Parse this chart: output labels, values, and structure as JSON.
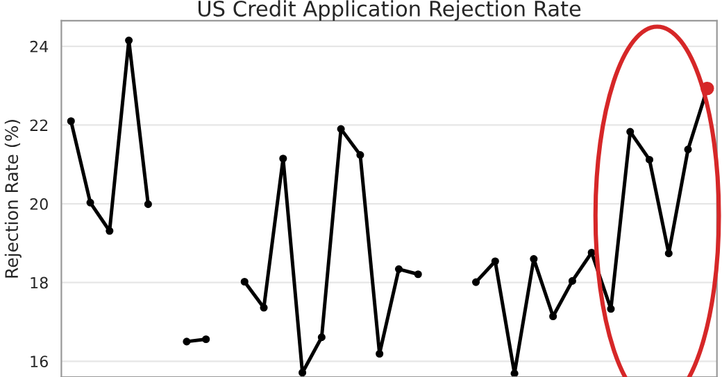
{
  "chart_data": {
    "type": "line",
    "title": "US Credit Application Rejection Rate",
    "ylabel": "Rejection Rate (%)",
    "categories": [
      null,
      null,
      null,
      null,
      null,
      null,
      null,
      null,
      null,
      null,
      null,
      null,
      null,
      null,
      null,
      null,
      null,
      null,
      null,
      null,
      null,
      null,
      null,
      null,
      null,
      null,
      null,
      null,
      null,
      null,
      null,
      null,
      null,
      null
    ],
    "series": [
      {
        "color": "#000000",
        "colors": [
          "#000000",
          "#000000",
          "#000000",
          "#000000",
          "#000000",
          "#000000",
          "#000000",
          "#000000",
          "#000000",
          "#000000",
          "#000000",
          "#000000",
          "#000000",
          "#000000",
          "#000000",
          "#000000",
          "#000000",
          "#000000",
          "#000000",
          "#000000",
          "#000000",
          "#000000",
          "#000000",
          "#000000",
          "#000000",
          "#000000",
          "#000000",
          "#000000",
          "#000000",
          "#000000",
          "#000000",
          "#000000",
          "#000000",
          "#d62728"
        ],
        "values": [
          22.1,
          20.03,
          19.31,
          24.15,
          19.99,
          null,
          16.5,
          16.56,
          null,
          18.02,
          17.36,
          21.15,
          15.71,
          16.61,
          21.9,
          21.24,
          16.19,
          18.34,
          18.21,
          null,
          null,
          18.01,
          18.54,
          15.69,
          18.6,
          17.14,
          18.04,
          18.76,
          17.33,
          21.83,
          21.12,
          18.74,
          21.38,
          22.93
        ]
      }
    ],
    "ylim": [
      15.6,
      24.65
    ],
    "yticks": [
      16,
      18,
      20,
      22,
      24
    ],
    "grid": "y",
    "marker": "circle",
    "line_style": "solid"
  }
}
